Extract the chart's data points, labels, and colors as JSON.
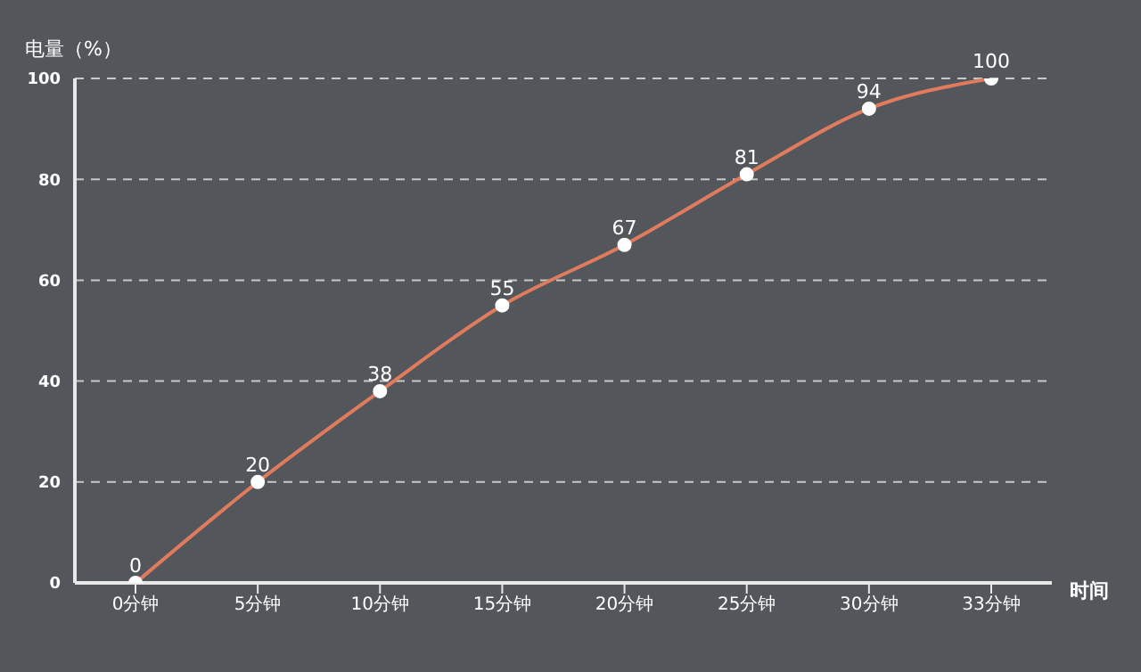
{
  "chart_data": {
    "type": "line",
    "ylabel": "电量（%）",
    "xlabel": "时间",
    "categories": [
      "0分钟",
      "5分钟",
      "10分钟",
      "15分钟",
      "20分钟",
      "25分钟",
      "30分钟",
      "33分钟"
    ],
    "series": [
      {
        "color": "#e07b5e",
        "values": [
          0,
          20,
          38,
          55,
          67,
          81,
          94,
          100
        ]
      }
    ],
    "ylim": [
      0,
      100
    ],
    "yticks": [
      0,
      20,
      40,
      60,
      80,
      100
    ],
    "grid": "y",
    "marker": "circle",
    "line_style": "solid",
    "data_labels": true
  }
}
